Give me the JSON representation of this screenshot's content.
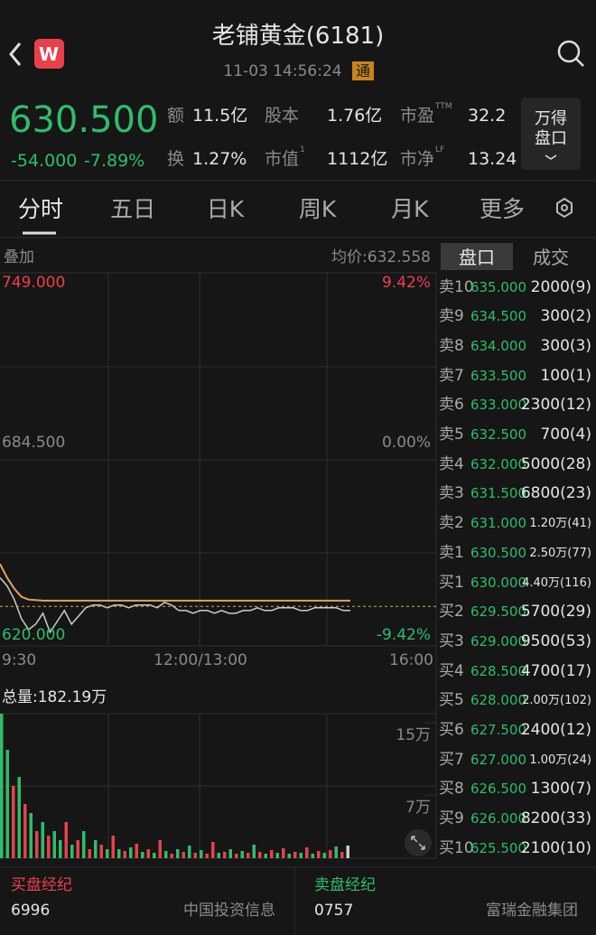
{
  "header": {
    "title": "老铺黄金(6181)",
    "time": "11-03 14:56:24",
    "badge": "通",
    "logo": "W"
  },
  "quote": {
    "price": "630.500",
    "change": "-54.000",
    "change_pct": "-7.89%",
    "stats": [
      {
        "label": "额",
        "value": "11.5亿"
      },
      {
        "label": "股本",
        "value": "1.76亿"
      },
      {
        "label": "市盈",
        "sup": "TTM",
        "value": "32.2"
      },
      {
        "label": "换",
        "value": "1.27%"
      },
      {
        "label": "市值",
        "sup": "1",
        "value": "1112亿"
      },
      {
        "label": "市净",
        "sup": "LF",
        "value": "13.24"
      }
    ],
    "button": [
      "万得",
      "盘口"
    ]
  },
  "tabs": [
    "分时",
    "五日",
    "日K",
    "周K",
    "月K",
    "更多"
  ],
  "chart": {
    "overlay": "叠加",
    "avg_label": "均价:632.558",
    "price_labels": [
      {
        "price": "749.000",
        "pct": "9.42%"
      },
      {
        "price": "684.500",
        "pct": "0.00%"
      },
      {
        "price": "620.000",
        "pct": "-9.42%"
      }
    ],
    "time_labels": [
      "9:30",
      "12:00/13:00",
      "16:00"
    ],
    "ylim": [
      620,
      749
    ],
    "price": [
      641,
      638,
      633,
      626,
      622,
      624,
      628,
      621,
      625,
      629,
      624,
      627,
      630,
      631,
      631,
      630,
      631,
      631,
      630,
      631,
      631,
      631,
      630,
      632,
      631,
      629,
      629,
      628,
      629,
      629,
      628,
      629,
      628,
      628,
      629,
      629,
      630,
      629,
      629,
      630,
      630,
      630,
      629,
      629,
      630,
      630,
      630,
      630,
      629,
      629
    ],
    "avg": [
      646,
      641,
      637,
      634,
      633,
      632.8,
      632.6,
      632.6,
      632.6,
      632.6,
      632.6,
      632.6,
      632.6,
      632.6,
      632.6,
      632.6,
      632.6,
      632.6,
      632.6,
      632.6,
      632.6,
      632.6,
      632.6,
      632.6,
      632.6,
      632.6,
      632.6,
      632.6,
      632.6,
      632.6,
      632.6,
      632.6,
      632.6,
      632.6,
      632.6,
      632.6,
      632.6,
      632.6,
      632.6,
      632.6,
      632.6,
      632.6,
      632.6,
      632.6,
      632.6,
      632.6,
      632.6,
      632.6,
      632.6,
      632.6
    ],
    "price_color": "#cccccc",
    "avg_color": "#e0a458",
    "volume_label": "总量:182.19万",
    "vol_ylim": [
      0,
      15
    ],
    "vol_ticks": [
      {
        "value": 15,
        "label": "15万"
      },
      {
        "value": 7,
        "label": "7万"
      }
    ],
    "volume": [
      16,
      12,
      8,
      9,
      6,
      5,
      3,
      4,
      2.5,
      3,
      2,
      4,
      1.5,
      2,
      3,
      1,
      2,
      1.5,
      1,
      2.5,
      1,
      0.8,
      1.2,
      1.6,
      0.7,
      1,
      0.6,
      2,
      0.8,
      0.5,
      1,
      0.7,
      1.4,
      0.6,
      0.9,
      0.5,
      1.8,
      0.6,
      0.7,
      1,
      0.5,
      0.8,
      0.6,
      1.5,
      0.7,
      0.5,
      0.9,
      0.6,
      1.1,
      0.5,
      0.7,
      0.6,
      1.2,
      0.5,
      0.8,
      0.6,
      0.9,
      1.3,
      0.7,
      1.4
    ],
    "volume_colors": [
      "#2ebd6b",
      "#2ebd6b",
      "#e8414a",
      "#2ebd6b",
      "#e8414a",
      "#2ebd6b",
      "#e8414a",
      "#2ebd6b",
      "#e8414a",
      "#2ebd6b",
      "#2ebd6b",
      "#e8414a",
      "#2ebd6b",
      "#e8414a",
      "#2ebd6b",
      "#e8414a",
      "#2ebd6b",
      "#e8414a",
      "#2ebd6b",
      "#e8414a",
      "#2ebd6b",
      "#e8414a",
      "#2ebd6b",
      "#e8414a",
      "#2ebd6b",
      "#e8414a",
      "#2ebd6b",
      "#e8414a",
      "#2ebd6b",
      "#e8414a",
      "#2ebd6b",
      "#e8414a",
      "#2ebd6b",
      "#e8414a",
      "#2ebd6b",
      "#e8414a",
      "#e8414a",
      "#2ebd6b",
      "#e8414a",
      "#2ebd6b",
      "#e8414a",
      "#2ebd6b",
      "#e8414a",
      "#2ebd6b",
      "#e8414a",
      "#2ebd6b",
      "#e8414a",
      "#2ebd6b",
      "#e8414a",
      "#2ebd6b",
      "#e8414a",
      "#2ebd6b",
      "#e8414a",
      "#2ebd6b",
      "#e8414a",
      "#2ebd6b",
      "#e8414a",
      "#2ebd6b",
      "#e8414a",
      "#cccccc"
    ]
  },
  "orderbook": {
    "tabs": [
      "盘口",
      "成交"
    ],
    "rows": [
      [
        "卖10",
        "635.000",
        "2000(9)"
      ],
      [
        "卖9",
        "634.500",
        "300(2)"
      ],
      [
        "卖8",
        "634.000",
        "300(3)"
      ],
      [
        "卖7",
        "633.500",
        "100(1)"
      ],
      [
        "卖6",
        "633.000",
        "2300(12)"
      ],
      [
        "卖5",
        "632.500",
        "700(4)"
      ],
      [
        "卖4",
        "632.000",
        "5000(28)"
      ],
      [
        "卖3",
        "631.500",
        "6800(23)"
      ],
      [
        "卖2",
        "631.000",
        "1.20万(41)"
      ],
      [
        "卖1",
        "630.500",
        "2.50万(77)"
      ],
      [
        "买1",
        "630.000",
        "4.40万(116)"
      ],
      [
        "买2",
        "629.500",
        "5700(29)"
      ],
      [
        "买3",
        "629.000",
        "9500(53)"
      ],
      [
        "买4",
        "628.500",
        "4700(17)"
      ],
      [
        "买5",
        "628.000",
        "2.00万(102)"
      ],
      [
        "买6",
        "627.500",
        "2400(12)"
      ],
      [
        "买7",
        "627.000",
        "1.00万(24)"
      ],
      [
        "买8",
        "626.500",
        "1300(7)"
      ],
      [
        "买9",
        "626.000",
        "8200(33)"
      ],
      [
        "买10",
        "625.500",
        "2100(10)"
      ]
    ]
  },
  "brokers": {
    "buy": {
      "title": "买盘经纪",
      "code": "6996",
      "name": "中国投资信息"
    },
    "sell": {
      "title": "卖盘经纪",
      "code": "0757",
      "name": "富瑞金融集团"
    }
  }
}
